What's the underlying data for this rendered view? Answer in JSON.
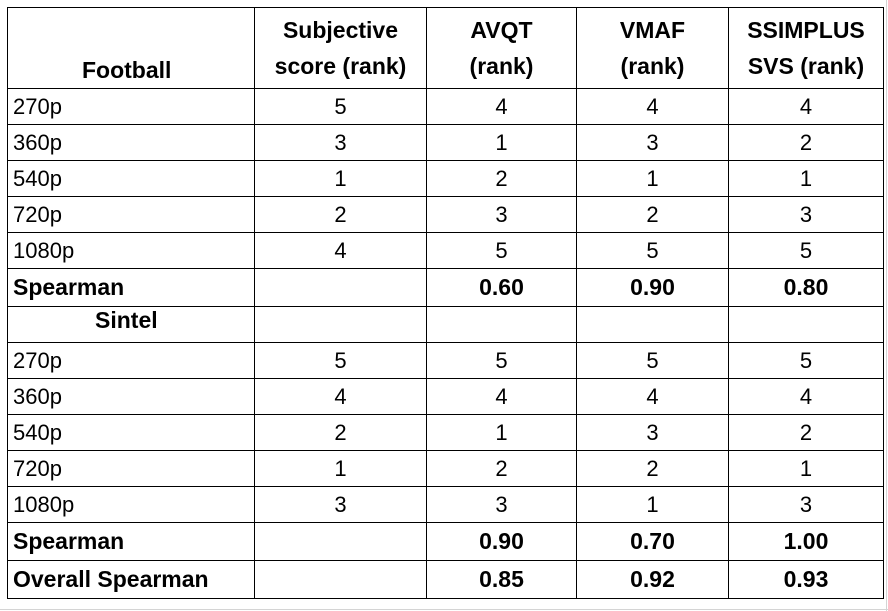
{
  "table": {
    "headers": {
      "title": "Football",
      "subjective": "Subjective score (rank)",
      "avqt": "AVQT (rank)",
      "vmaf": "VMAF (rank)",
      "ssimplus": "SSIMPLUS SVS (rank)"
    },
    "football": {
      "rows": [
        {
          "res": "270p",
          "subjective": "5",
          "avqt": "4",
          "vmaf": "4",
          "ssimplus": "4"
        },
        {
          "res": "360p",
          "subjective": "3",
          "avqt": "1",
          "vmaf": "3",
          "ssimplus": "2"
        },
        {
          "res": "540p",
          "subjective": "1",
          "avqt": "2",
          "vmaf": "1",
          "ssimplus": "1"
        },
        {
          "res": "720p",
          "subjective": "2",
          "avqt": "3",
          "vmaf": "2",
          "ssimplus": "3"
        },
        {
          "res": "1080p",
          "subjective": "4",
          "avqt": "5",
          "vmaf": "5",
          "ssimplus": "5"
        }
      ],
      "spearman": {
        "label": "Spearman",
        "avqt": "0.60",
        "vmaf": "0.90",
        "ssimplus": "0.80"
      }
    },
    "sintel": {
      "title": "Sintel",
      "rows": [
        {
          "res": "270p",
          "subjective": "5",
          "avqt": "5",
          "vmaf": "5",
          "ssimplus": "5"
        },
        {
          "res": "360p",
          "subjective": "4",
          "avqt": "4",
          "vmaf": "4",
          "ssimplus": "4"
        },
        {
          "res": "540p",
          "subjective": "2",
          "avqt": "1",
          "vmaf": "3",
          "ssimplus": "2"
        },
        {
          "res": "720p",
          "subjective": "1",
          "avqt": "2",
          "vmaf": "2",
          "ssimplus": "1"
        },
        {
          "res": "1080p",
          "subjective": "3",
          "avqt": "3",
          "vmaf": "1",
          "ssimplus": "3"
        }
      ],
      "spearman": {
        "label": "Spearman",
        "avqt": "0.90",
        "vmaf": "0.70",
        "ssimplus": "1.00"
      }
    },
    "overall": {
      "label": "Overall Spearman",
      "avqt": "0.85",
      "vmaf": "0.92",
      "ssimplus": "0.93"
    }
  }
}
